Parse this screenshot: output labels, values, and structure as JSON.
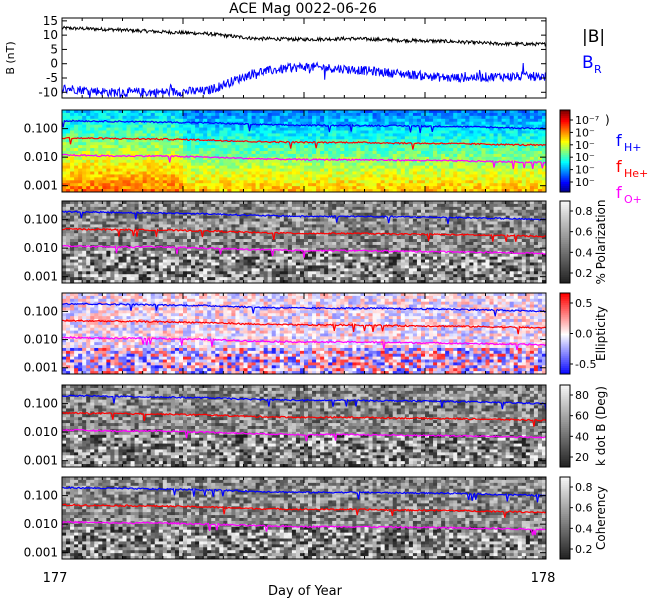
{
  "title": "ACE Mag 0022-06-26",
  "x_label": "Day of Year",
  "x_ticks": [
    "177",
    "178"
  ],
  "colors": {
    "bmag": "#000000",
    "br": "#0000ff",
    "fh": "#0000ff",
    "fhe": "#ff0000",
    "fo": "#ff00ff"
  },
  "chart_data": [
    {
      "type": "line",
      "panel": "magnetic-field",
      "ylabel": "B (nT)",
      "ylim": [
        -12,
        16
      ],
      "y_ticks": [
        "15",
        "10",
        "5",
        "0",
        "-5",
        "-10"
      ],
      "x": [
        177.0,
        177.1,
        177.2,
        177.3,
        177.4,
        177.5,
        177.6,
        177.7,
        177.8,
        177.9,
        178.0
      ],
      "series": [
        {
          "name": "|B|",
          "values": [
            12.5,
            12.0,
            11.2,
            10.5,
            8.8,
            8.5,
            8.8,
            8.2,
            7.8,
            7.0,
            6.8
          ]
        },
        {
          "name": "B",
          "subscript": "R",
          "values": [
            -8.5,
            -10.0,
            -10.0,
            -9.5,
            -3.0,
            -1.0,
            -2.0,
            -3.5,
            -5.0,
            -4.5,
            -4.5
          ]
        }
      ]
    },
    {
      "type": "heatmap",
      "panel": "power-spectrum",
      "y_scale": "log",
      "ylim": [
        0.0006,
        0.45
      ],
      "y_ticks": [
        "0.100",
        "0.010",
        "0.001"
      ],
      "colorbar_ticks": [
        "10⁻⁷",
        "10⁻",
        "10⁻",
        "10⁻",
        "10⁻",
        "10⁻"
      ],
      "colorbar_label": ")",
      "legend": [
        {
          "name": "f",
          "subscript": "H+"
        },
        {
          "name": "f",
          "subscript": "He+"
        },
        {
          "name": "f",
          "subscript": "O+"
        }
      ]
    },
    {
      "type": "heatmap",
      "panel": "polarization",
      "y_scale": "log",
      "y_ticks": [
        "0.100",
        "0.010",
        "0.001"
      ],
      "colorbar_ticks": [
        "0.8",
        "0.6",
        "0.4",
        "0.2"
      ],
      "colorbar_label": "% Polarization"
    },
    {
      "type": "heatmap",
      "panel": "ellipticity",
      "y_scale": "log",
      "y_ticks": [
        "0.100",
        "0.010",
        "0.001"
      ],
      "colorbar_ticks": [
        "0.5",
        "0.0",
        "-0.5"
      ],
      "colorbar_label": "Ellipticity"
    },
    {
      "type": "heatmap",
      "panel": "k-dot-b",
      "y_scale": "log",
      "y_ticks": [
        "0.100",
        "0.010",
        "0.001"
      ],
      "colorbar_ticks": [
        "80",
        "60",
        "40",
        "20"
      ],
      "colorbar_label": "k dot B (Deg)"
    },
    {
      "type": "heatmap",
      "panel": "coherency",
      "y_scale": "log",
      "y_ticks": [
        "0.100",
        "0.010",
        "0.001"
      ],
      "colorbar_ticks": [
        "0.8",
        "0.6",
        "0.4",
        "0.2"
      ],
      "colorbar_label": "Coherency"
    }
  ],
  "gyro_lines": {
    "x": [
      177.0,
      177.1,
      177.2,
      177.3,
      177.4,
      177.5,
      177.6,
      177.7,
      177.8,
      177.9,
      178.0
    ],
    "fh": [
      0.19,
      0.18,
      0.17,
      0.16,
      0.14,
      0.13,
      0.13,
      0.125,
      0.12,
      0.11,
      0.1
    ],
    "fhe": [
      0.047,
      0.045,
      0.043,
      0.04,
      0.035,
      0.033,
      0.033,
      0.031,
      0.03,
      0.028,
      0.026
    ],
    "fo": [
      0.012,
      0.011,
      0.011,
      0.01,
      0.0088,
      0.0082,
      0.0082,
      0.0078,
      0.0075,
      0.007,
      0.0065
    ]
  }
}
